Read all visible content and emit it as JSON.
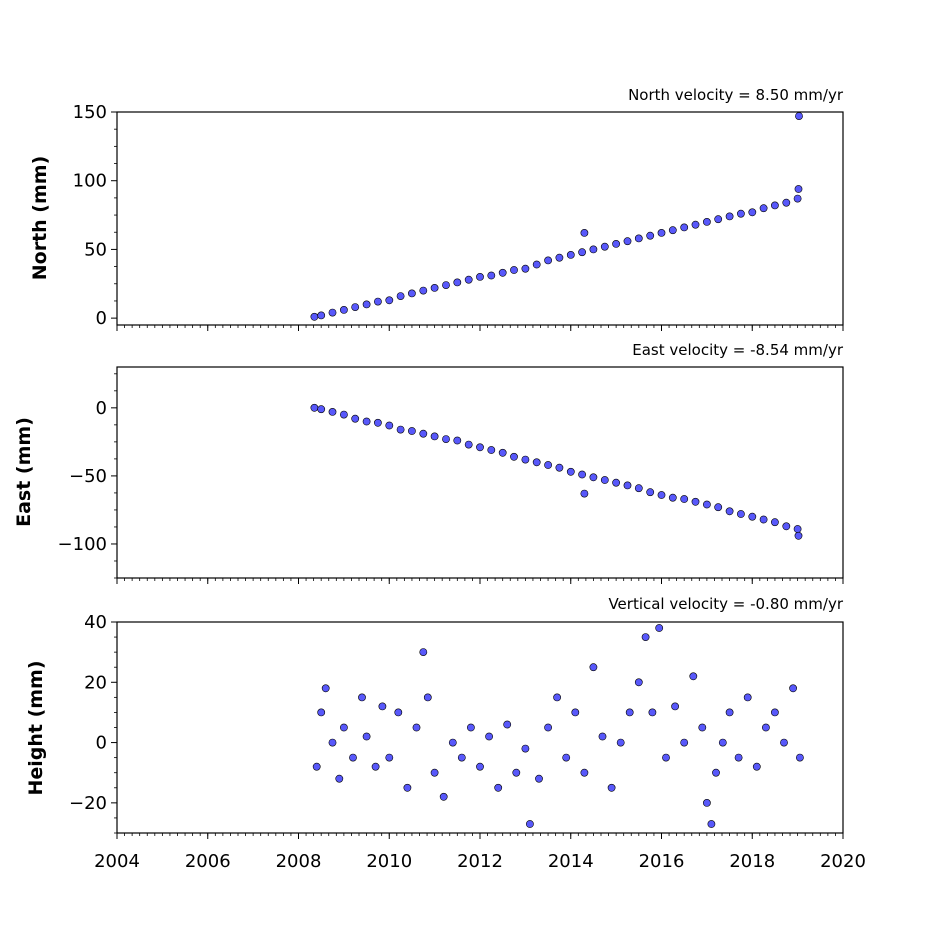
{
  "colors": {
    "marker_fill": "#5858fa",
    "marker_edge": "#000000",
    "axes": "#000000"
  },
  "chart_data": [
    {
      "type": "scatter",
      "title": "North velocity = 8.50 mm/yr",
      "xlabel": "",
      "ylabel": "North (mm)",
      "xlim": [
        2004,
        2020
      ],
      "ylim": [
        -5,
        150
      ],
      "yticks": [
        0,
        50,
        100,
        150
      ],
      "xticks": [
        2004,
        2006,
        2008,
        2010,
        2012,
        2014,
        2016,
        2018,
        2020
      ],
      "show_xtick_labels": false,
      "grid": false,
      "series": [
        {
          "x": [
            2008.35,
            2008.5,
            2008.75,
            2009.0,
            2009.25,
            2009.5,
            2009.75,
            2010.0,
            2010.25,
            2010.5,
            2010.75,
            2011.0,
            2011.25,
            2011.5,
            2011.75,
            2012.0,
            2012.25,
            2012.5,
            2012.75,
            2013.0,
            2013.25,
            2013.5,
            2013.75,
            2014.0,
            2014.25,
            2014.3,
            2014.5,
            2014.75,
            2015.0,
            2015.25,
            2015.5,
            2015.75,
            2016.0,
            2016.25,
            2016.5,
            2016.75,
            2017.0,
            2017.25,
            2017.5,
            2017.75,
            2018.0,
            2018.25,
            2018.5,
            2018.75,
            2019.0,
            2019.02,
            2019.03
          ],
          "y": [
            1,
            2,
            4,
            6,
            8,
            10,
            12,
            13,
            16,
            18,
            20,
            22,
            24,
            26,
            28,
            30,
            31,
            33,
            35,
            36,
            39,
            42,
            44,
            46,
            48,
            62,
            50,
            52,
            54,
            56,
            58,
            60,
            62,
            64,
            66,
            68,
            70,
            72,
            74,
            76,
            77,
            80,
            82,
            84,
            87,
            94,
            147
          ]
        }
      ]
    },
    {
      "type": "scatter",
      "title": "East velocity = -8.54 mm/yr",
      "xlabel": "",
      "ylabel": "East (mm)",
      "xlim": [
        2004,
        2020
      ],
      "ylim": [
        -125,
        30
      ],
      "yticks": [
        0,
        -50,
        -100
      ],
      "xticks": [
        2004,
        2006,
        2008,
        2010,
        2012,
        2014,
        2016,
        2018,
        2020
      ],
      "show_xtick_labels": false,
      "grid": false,
      "series": [
        {
          "x": [
            2008.35,
            2008.5,
            2008.75,
            2009.0,
            2009.25,
            2009.5,
            2009.75,
            2010.0,
            2010.25,
            2010.5,
            2010.75,
            2011.0,
            2011.25,
            2011.5,
            2011.75,
            2012.0,
            2012.25,
            2012.5,
            2012.75,
            2013.0,
            2013.25,
            2013.5,
            2013.75,
            2014.0,
            2014.25,
            2014.3,
            2014.5,
            2014.75,
            2015.0,
            2015.25,
            2015.5,
            2015.75,
            2016.0,
            2016.25,
            2016.5,
            2016.75,
            2017.0,
            2017.25,
            2017.5,
            2017.75,
            2018.0,
            2018.25,
            2018.5,
            2018.75,
            2019.0,
            2019.02
          ],
          "y": [
            0,
            -1,
            -3,
            -5,
            -8,
            -10,
            -11,
            -13,
            -16,
            -17,
            -19,
            -21,
            -23,
            -24,
            -27,
            -29,
            -31,
            -33,
            -36,
            -38,
            -40,
            -42,
            -44,
            -47,
            -49,
            -63,
            -51,
            -53,
            -55,
            -57,
            -59,
            -62,
            -64,
            -66,
            -67,
            -69,
            -71,
            -73,
            -76,
            -78,
            -80,
            -82,
            -84,
            -87,
            -89,
            -94
          ]
        }
      ]
    },
    {
      "type": "scatter",
      "title": "Vertical velocity = -0.80 mm/yr",
      "xlabel": "",
      "ylabel": "Height (mm)",
      "xlim": [
        2004,
        2020
      ],
      "ylim": [
        -30,
        40
      ],
      "yticks": [
        -20,
        0,
        20,
        40
      ],
      "xticks": [
        2004,
        2006,
        2008,
        2010,
        2012,
        2014,
        2016,
        2018,
        2020
      ],
      "show_xtick_labels": true,
      "grid": false,
      "series": [
        {
          "x": [
            2008.4,
            2008.5,
            2008.6,
            2008.75,
            2008.9,
            2009.0,
            2009.2,
            2009.4,
            2009.5,
            2009.7,
            2009.85,
            2010.0,
            2010.2,
            2010.4,
            2010.6,
            2010.75,
            2010.85,
            2011.0,
            2011.2,
            2011.4,
            2011.6,
            2011.8,
            2012.0,
            2012.2,
            2012.4,
            2012.6,
            2012.8,
            2013.0,
            2013.1,
            2013.3,
            2013.5,
            2013.7,
            2013.9,
            2014.1,
            2014.3,
            2014.5,
            2014.7,
            2014.9,
            2015.1,
            2015.3,
            2015.5,
            2015.65,
            2015.8,
            2015.95,
            2016.1,
            2016.3,
            2016.5,
            2016.7,
            2016.9,
            2017.0,
            2017.1,
            2017.2,
            2017.35,
            2017.5,
            2017.7,
            2017.9,
            2018.1,
            2018.3,
            2018.5,
            2018.7,
            2018.9,
            2019.05
          ],
          "y": [
            -8,
            10,
            18,
            0,
            -12,
            5,
            -5,
            15,
            2,
            -8,
            12,
            -5,
            10,
            -15,
            5,
            30,
            15,
            -10,
            -18,
            0,
            -5,
            5,
            -8,
            2,
            -15,
            6,
            -10,
            -2,
            -27,
            -12,
            5,
            15,
            -5,
            10,
            -10,
            25,
            2,
            -15,
            0,
            10,
            20,
            35,
            10,
            38,
            -5,
            12,
            0,
            22,
            5,
            -20,
            -27,
            -10,
            0,
            10,
            -5,
            15,
            -8,
            5,
            10,
            0,
            18,
            -5
          ]
        }
      ]
    }
  ]
}
